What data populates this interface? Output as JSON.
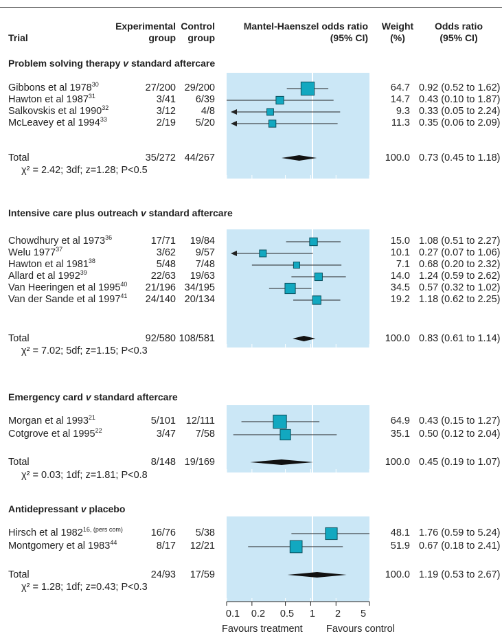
{
  "headers": {
    "trial": "Trial",
    "exp": [
      "Experimental",
      "group"
    ],
    "ctrl": [
      "Control",
      "group"
    ],
    "mh": [
      "Mantel-Haenszel odds ratio",
      "(95% CI)"
    ],
    "weight": [
      "Weight",
      "(%)"
    ],
    "or": [
      "Odds ratio",
      "(95% CI)"
    ]
  },
  "total_label": "Total",
  "axis": {
    "ticks": [
      "0.1",
      "0.2",
      "0.5",
      "1",
      "2",
      "5"
    ],
    "favours_treatment": "Favours treatment",
    "favours_control": "Favours control"
  },
  "colors": {
    "panel": "#cbe7f6",
    "marker": "#12a8c0",
    "diamond": "#111111"
  },
  "chart_data": {
    "type": "forest",
    "scale": "log",
    "xlim": [
      0.1,
      5
    ],
    "reference_line": 1,
    "groups": [
      {
        "title": "Problem solving therapy v standard aftercare",
        "title_main": "Problem solving therapy ",
        "title_v": "v",
        "title_rest": " standard aftercare",
        "studies": [
          {
            "name": "Gibbons et al 1978",
            "ref": "30",
            "exp": "27/200",
            "ctrl": "29/200",
            "or": 0.92,
            "lo": 0.52,
            "hi": 1.62,
            "weight": "64.7",
            "ci_text": "0.92 (0.52 to 1.62)"
          },
          {
            "name": "Hawton et al 1987",
            "ref": "31",
            "exp": "3/41",
            "ctrl": "6/39",
            "or": 0.43,
            "lo": 0.1,
            "hi": 1.87,
            "weight": "14.7",
            "ci_text": "0.43 (0.10 to 1.87)"
          },
          {
            "name": "Salkovskis et al 1990",
            "ref": "32",
            "exp": "3/12",
            "ctrl": "4/8",
            "or": 0.33,
            "lo": 0.05,
            "hi": 2.24,
            "weight": "9.3",
            "ci_text": "0.33 (0.05 to 2.24)"
          },
          {
            "name": "McLeavey et al 1994",
            "ref": "33",
            "exp": "2/19",
            "ctrl": "5/20",
            "or": 0.35,
            "lo": 0.06,
            "hi": 2.09,
            "weight": "11.3",
            "ci_text": "0.35 (0.06 to 2.09)"
          }
        ],
        "total": {
          "exp": "35/272",
          "ctrl": "44/267",
          "or": 0.73,
          "lo": 0.45,
          "hi": 1.18,
          "weight": "100.0",
          "ci_text": "0.73 (0.45 to 1.18)"
        },
        "stats": "χ² = 2.42; 3df; z=1.28; P<0.5"
      },
      {
        "title": "Intensive care plus outreach v standard aftercare",
        "title_main": "Intensive care plus outreach ",
        "title_v": "v",
        "title_rest": " standard aftercare",
        "studies": [
          {
            "name": "Chowdhury et al 1973",
            "ref": "36",
            "exp": "17/71",
            "ctrl": "19/84",
            "or": 1.08,
            "lo": 0.51,
            "hi": 2.27,
            "weight": "15.0",
            "ci_text": "1.08 (0.51 to 2.27)"
          },
          {
            "name": "Welu 1977",
            "ref": "37",
            "exp": "3/62",
            "ctrl": "9/57",
            "or": 0.27,
            "lo": 0.07,
            "hi": 1.06,
            "weight": "10.1",
            "ci_text": "0.27 (0.07 to 1.06)"
          },
          {
            "name": "Hawton et al 1981",
            "ref": "38",
            "exp": "5/48",
            "ctrl": "7/48",
            "or": 0.68,
            "lo": 0.2,
            "hi": 2.32,
            "weight": "7.1",
            "ci_text": "0.68 (0.20 to 2.32)"
          },
          {
            "name": "Allard et al 1992",
            "ref": "39",
            "exp": "22/63",
            "ctrl": "19/63",
            "or": 1.24,
            "lo": 0.59,
            "hi": 2.62,
            "weight": "14.0",
            "ci_text": "1.24 (0.59 to 2.62)"
          },
          {
            "name": "Van Heeringen et al 1995",
            "ref": "40",
            "exp": "21/196",
            "ctrl": "34/195",
            "or": 0.57,
            "lo": 0.32,
            "hi": 1.02,
            "weight": "34.5",
            "ci_text": "0.57 (0.32 to 1.02)"
          },
          {
            "name": "Van der Sande et al 1997",
            "ref": "41",
            "exp": "24/140",
            "ctrl": "20/134",
            "or": 1.18,
            "lo": 0.62,
            "hi": 2.25,
            "weight": "19.2",
            "ci_text": "1.18 (0.62 to 2.25)"
          }
        ],
        "total": {
          "exp": "92/580",
          "ctrl": "108/581",
          "or": 0.83,
          "lo": 0.61,
          "hi": 1.14,
          "weight": "100.0",
          "ci_text": "0.83 (0.61 to 1.14)"
        },
        "stats": "χ² = 7.02; 5df; z=1.15; P<0.3"
      },
      {
        "title": "Emergency card v standard aftercare",
        "title_main": "Emergency card ",
        "title_v": "v",
        "title_rest": " standard aftercare",
        "studies": [
          {
            "name": "Morgan et al 1993",
            "ref": "21",
            "exp": "5/101",
            "ctrl": "12/111",
            "or": 0.43,
            "lo": 0.15,
            "hi": 1.27,
            "weight": "64.9",
            "ci_text": "0.43 (0.15 to 1.27)"
          },
          {
            "name": "Cotgrove et al 1995",
            "ref": "22",
            "exp": "3/47",
            "ctrl": "7/58",
            "or": 0.5,
            "lo": 0.12,
            "hi": 2.04,
            "weight": "35.1",
            "ci_text": "0.50 (0.12 to 2.04)"
          }
        ],
        "total": {
          "exp": "8/148",
          "ctrl": "19/169",
          "or": 0.45,
          "lo": 0.19,
          "hi": 1.07,
          "weight": "100.0",
          "ci_text": "0.45 (0.19 to 1.07)"
        },
        "stats": "χ² = 0.03; 1df; z=1.81; P<0.8"
      },
      {
        "title": "Antidepressant v placebo",
        "title_main": "Antidepressant ",
        "title_v": "v",
        "title_rest": " placebo",
        "studies": [
          {
            "name": "Hirsch et al 1982",
            "ref": "16, (pers com)",
            "exp": "16/76",
            "ctrl": "5/38",
            "or": 1.76,
            "lo": 0.59,
            "hi": 5.24,
            "weight": "48.1",
            "ci_text": "1.76 (0.59 to 5.24)"
          },
          {
            "name": "Montgomery et al 1983",
            "ref": "44",
            "exp": "8/17",
            "ctrl": "12/21",
            "or": 0.67,
            "lo": 0.18,
            "hi": 2.41,
            "weight": "51.9",
            "ci_text": "0.67 (0.18 to 2.41)"
          }
        ],
        "total": {
          "exp": "24/93",
          "ctrl": "17/59",
          "or": 1.19,
          "lo": 0.53,
          "hi": 2.67,
          "weight": "100.0",
          "ci_text": "1.19 (0.53 to 2.67)"
        },
        "stats": "χ² = 1.28; 1df; z=0.43; P<0.3"
      }
    ]
  }
}
